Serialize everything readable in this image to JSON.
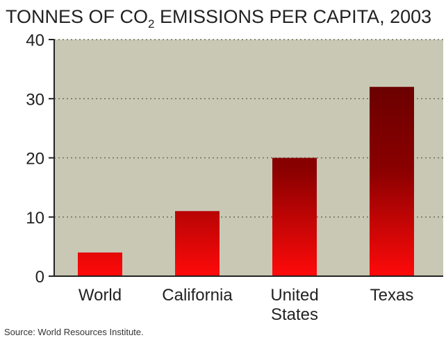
{
  "chart_data": {
    "type": "bar",
    "title": {
      "prefix": "TONNES OF CO",
      "subscript": "2",
      "suffix": " EMISSIONS PER CAPITA, 2003"
    },
    "xlabel": "",
    "ylabel": "",
    "categories": [
      [
        "World"
      ],
      [
        "California"
      ],
      [
        "United",
        "States"
      ],
      [
        "Texas"
      ]
    ],
    "values": [
      4,
      11,
      20,
      32
    ],
    "ylim": [
      0,
      40
    ],
    "yticks": [
      0,
      10,
      20,
      30,
      40
    ],
    "grid": true,
    "source": "Source: World Resources Institute."
  },
  "colors": {
    "plot_background": "#c8c8b4",
    "bar_top": "#8a0000",
    "bar_bottom": "#ff0a0a",
    "text": "#222222"
  }
}
